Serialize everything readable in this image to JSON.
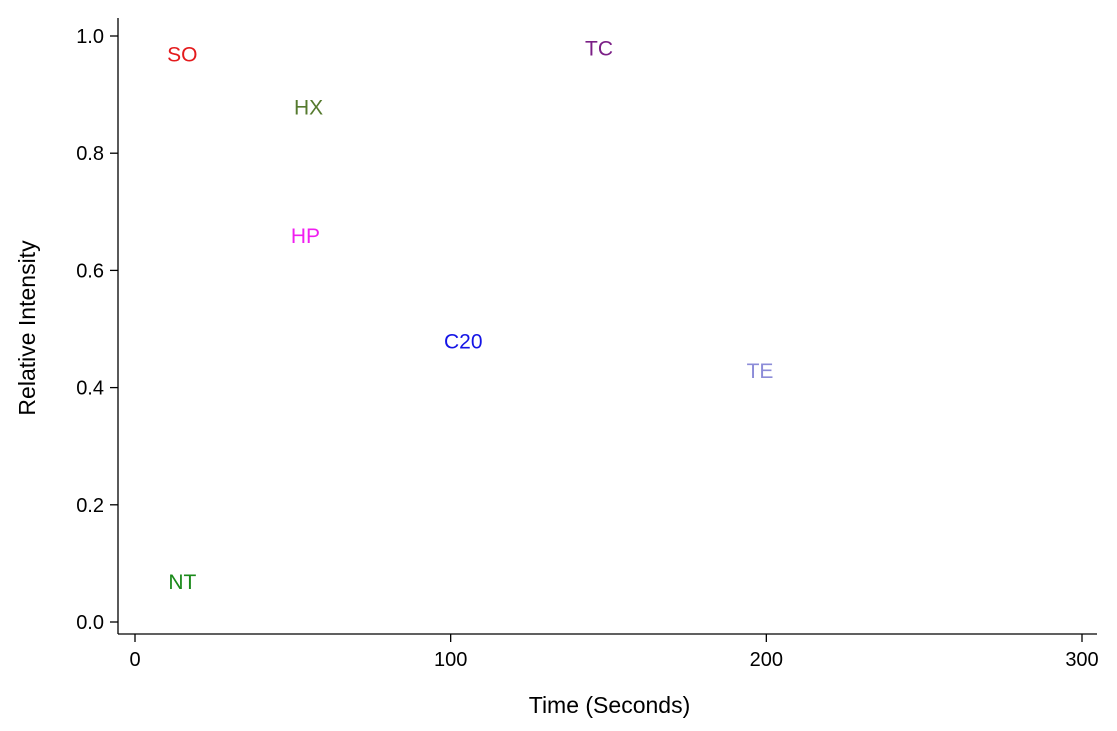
{
  "chart_data": {
    "type": "scatter",
    "title": "",
    "xlabel": "Time (Seconds)",
    "ylabel": "Relative Intensity",
    "xlim": [
      -5,
      305
    ],
    "ylim": [
      -0.02,
      1.03
    ],
    "x_ticks": [
      0,
      100,
      200,
      300
    ],
    "x_tick_labels": [
      "0",
      "100",
      "200",
      "300"
    ],
    "y_ticks": [
      0.0,
      0.2,
      0.4,
      0.6,
      0.8,
      1.0
    ],
    "y_tick_labels": [
      "0.0",
      "0.2",
      "0.4",
      "0.6",
      "0.8",
      "1.0"
    ],
    "grid": false,
    "legend": "none",
    "points": [
      {
        "label": "SO",
        "x": 15,
        "y": 0.97,
        "color": "#e41a1c"
      },
      {
        "label": "TC",
        "x": 147,
        "y": 0.98,
        "color": "#7b1f86"
      },
      {
        "label": "HX",
        "x": 55,
        "y": 0.88,
        "color": "#557a2e"
      },
      {
        "label": "HP",
        "x": 54,
        "y": 0.66,
        "color": "#f01ef0"
      },
      {
        "label": "C20",
        "x": 104,
        "y": 0.48,
        "color": "#1414e6"
      },
      {
        "label": "TE",
        "x": 198,
        "y": 0.43,
        "color": "#8c8cd8"
      },
      {
        "label": "NT",
        "x": 15,
        "y": 0.07,
        "color": "#1a8a1a"
      }
    ]
  }
}
